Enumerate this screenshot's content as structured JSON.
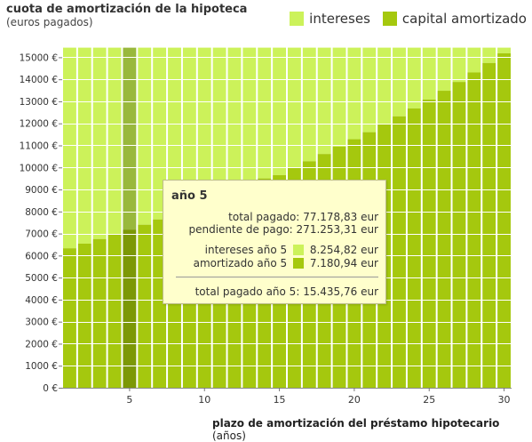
{
  "header": {
    "title": "cuota de amortización de la hipoteca",
    "subtitle": "(euros pagados)"
  },
  "legend": {
    "intereses_label": "intereses",
    "capital_label": "capital amortizado"
  },
  "colors": {
    "intereses": "#ccf25a",
    "capital": "#a5c80e",
    "selected_intereses": "#99b83c",
    "selected_capital": "#7c9806",
    "grid": "#ffffff"
  },
  "xaxis": {
    "label_bold": "plazo de amortización del préstamo hipotecario",
    "label_unit": "(años)"
  },
  "tooltip": {
    "title": "año 5",
    "total_label": "total pagado:",
    "total_value": "77.178,83 eur",
    "pendiente_label": "pendiente de pago:",
    "pendiente_value": "271.253,31 eur",
    "intereses_label": "intereses año 5",
    "intereses_value": "8.254,82 eur",
    "amortizado_label": "amortizado año 5",
    "amortizado_value": "7.180,94 eur",
    "total_year_label": "total pagado año 5:",
    "total_year_value": "15.435,76 eur"
  },
  "chart_data": {
    "type": "bar",
    "stacked": true,
    "title": "cuota de amortización de la hipoteca",
    "subtitle": "(euros pagados)",
    "xlabel": "plazo de amortización del préstamo hipotecario (años)",
    "ylabel": "",
    "ylim": [
      0,
      15500
    ],
    "yticks": [
      0,
      1000,
      2000,
      3000,
      4000,
      5000,
      6000,
      7000,
      8000,
      9000,
      10000,
      11000,
      12000,
      13000,
      14000,
      15000
    ],
    "ytick_labels": [
      "0 €",
      "1000 €",
      "2000 €",
      "3000 €",
      "4000 €",
      "5000 €",
      "6000 €",
      "7000 €",
      "8000 €",
      "9000 €",
      "10000 €",
      "11000 €",
      "12000 €",
      "13000 €",
      "14000 €",
      "15000 €"
    ],
    "xticks": [
      5,
      10,
      15,
      20,
      25,
      30
    ],
    "grid": "y",
    "legend_position": "top-right",
    "selected_category": 5,
    "categories": [
      1,
      2,
      3,
      4,
      5,
      6,
      7,
      8,
      9,
      10,
      11,
      12,
      13,
      14,
      15,
      16,
      17,
      18,
      19,
      20,
      21,
      22,
      23,
      24,
      25,
      26,
      27,
      28,
      29,
      30
    ],
    "series": [
      {
        "name": "capital amortizado",
        "values": [
          6330,
          6540,
          6750,
          6960,
          7180,
          7400,
          7640,
          7880,
          8130,
          8390,
          8660,
          8930,
          9210,
          9500,
          9650,
          10000,
          10280,
          10610,
          10940,
          11280,
          11600,
          11960,
          12320,
          12680,
          13080,
          13480,
          13880,
          14310,
          14740,
          15180
        ]
      },
      {
        "name": "intereses",
        "values": [
          9105.76,
          8895.76,
          8685.76,
          8475.76,
          8254.82,
          8035.76,
          7795.76,
          7555.76,
          7305.76,
          7045.76,
          6775.76,
          6505.76,
          6225.76,
          5935.76,
          5785.76,
          5435.76,
          5155.76,
          4825.76,
          4495.76,
          4155.76,
          3835.76,
          3475.76,
          3115.76,
          2755.76,
          2355.76,
          1955.76,
          1555.76,
          1125.76,
          695.76,
          255.76
        ]
      }
    ]
  }
}
